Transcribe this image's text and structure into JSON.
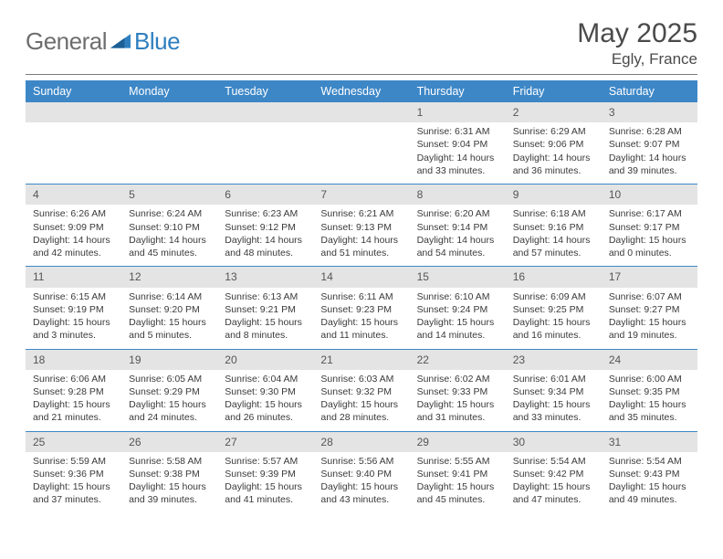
{
  "logo": {
    "part1": "General",
    "part2": "Blue"
  },
  "title": "May 2025",
  "location": "Egly, France",
  "weekdays": [
    "Sunday",
    "Monday",
    "Tuesday",
    "Wednesday",
    "Thursday",
    "Friday",
    "Saturday"
  ],
  "colors": {
    "header_bg": "#3d87c7",
    "header_text": "#ffffff",
    "daynum_bg": "#e4e4e4",
    "row_border": "#3d87c7",
    "body_text": "#3a3a3a",
    "title_text": "#4a4a4a",
    "logo_gray": "#6e6e6e",
    "logo_blue": "#2f7fbf"
  },
  "fonts": {
    "title_size_pt": 30,
    "location_size_pt": 17,
    "weekday_size_pt": 12.5,
    "daynum_size_pt": 12,
    "cell_size_pt": 10.5
  },
  "weeks": [
    [
      null,
      null,
      null,
      null,
      {
        "n": "1",
        "sr": "6:31 AM",
        "ss": "9:04 PM",
        "dl": "14 hours and 33 minutes."
      },
      {
        "n": "2",
        "sr": "6:29 AM",
        "ss": "9:06 PM",
        "dl": "14 hours and 36 minutes."
      },
      {
        "n": "3",
        "sr": "6:28 AM",
        "ss": "9:07 PM",
        "dl": "14 hours and 39 minutes."
      }
    ],
    [
      {
        "n": "4",
        "sr": "6:26 AM",
        "ss": "9:09 PM",
        "dl": "14 hours and 42 minutes."
      },
      {
        "n": "5",
        "sr": "6:24 AM",
        "ss": "9:10 PM",
        "dl": "14 hours and 45 minutes."
      },
      {
        "n": "6",
        "sr": "6:23 AM",
        "ss": "9:12 PM",
        "dl": "14 hours and 48 minutes."
      },
      {
        "n": "7",
        "sr": "6:21 AM",
        "ss": "9:13 PM",
        "dl": "14 hours and 51 minutes."
      },
      {
        "n": "8",
        "sr": "6:20 AM",
        "ss": "9:14 PM",
        "dl": "14 hours and 54 minutes."
      },
      {
        "n": "9",
        "sr": "6:18 AM",
        "ss": "9:16 PM",
        "dl": "14 hours and 57 minutes."
      },
      {
        "n": "10",
        "sr": "6:17 AM",
        "ss": "9:17 PM",
        "dl": "15 hours and 0 minutes."
      }
    ],
    [
      {
        "n": "11",
        "sr": "6:15 AM",
        "ss": "9:19 PM",
        "dl": "15 hours and 3 minutes."
      },
      {
        "n": "12",
        "sr": "6:14 AM",
        "ss": "9:20 PM",
        "dl": "15 hours and 5 minutes."
      },
      {
        "n": "13",
        "sr": "6:13 AM",
        "ss": "9:21 PM",
        "dl": "15 hours and 8 minutes."
      },
      {
        "n": "14",
        "sr": "6:11 AM",
        "ss": "9:23 PM",
        "dl": "15 hours and 11 minutes."
      },
      {
        "n": "15",
        "sr": "6:10 AM",
        "ss": "9:24 PM",
        "dl": "15 hours and 14 minutes."
      },
      {
        "n": "16",
        "sr": "6:09 AM",
        "ss": "9:25 PM",
        "dl": "15 hours and 16 minutes."
      },
      {
        "n": "17",
        "sr": "6:07 AM",
        "ss": "9:27 PM",
        "dl": "15 hours and 19 minutes."
      }
    ],
    [
      {
        "n": "18",
        "sr": "6:06 AM",
        "ss": "9:28 PM",
        "dl": "15 hours and 21 minutes."
      },
      {
        "n": "19",
        "sr": "6:05 AM",
        "ss": "9:29 PM",
        "dl": "15 hours and 24 minutes."
      },
      {
        "n": "20",
        "sr": "6:04 AM",
        "ss": "9:30 PM",
        "dl": "15 hours and 26 minutes."
      },
      {
        "n": "21",
        "sr": "6:03 AM",
        "ss": "9:32 PM",
        "dl": "15 hours and 28 minutes."
      },
      {
        "n": "22",
        "sr": "6:02 AM",
        "ss": "9:33 PM",
        "dl": "15 hours and 31 minutes."
      },
      {
        "n": "23",
        "sr": "6:01 AM",
        "ss": "9:34 PM",
        "dl": "15 hours and 33 minutes."
      },
      {
        "n": "24",
        "sr": "6:00 AM",
        "ss": "9:35 PM",
        "dl": "15 hours and 35 minutes."
      }
    ],
    [
      {
        "n": "25",
        "sr": "5:59 AM",
        "ss": "9:36 PM",
        "dl": "15 hours and 37 minutes."
      },
      {
        "n": "26",
        "sr": "5:58 AM",
        "ss": "9:38 PM",
        "dl": "15 hours and 39 minutes."
      },
      {
        "n": "27",
        "sr": "5:57 AM",
        "ss": "9:39 PM",
        "dl": "15 hours and 41 minutes."
      },
      {
        "n": "28",
        "sr": "5:56 AM",
        "ss": "9:40 PM",
        "dl": "15 hours and 43 minutes."
      },
      {
        "n": "29",
        "sr": "5:55 AM",
        "ss": "9:41 PM",
        "dl": "15 hours and 45 minutes."
      },
      {
        "n": "30",
        "sr": "5:54 AM",
        "ss": "9:42 PM",
        "dl": "15 hours and 47 minutes."
      },
      {
        "n": "31",
        "sr": "5:54 AM",
        "ss": "9:43 PM",
        "dl": "15 hours and 49 minutes."
      }
    ]
  ],
  "labels": {
    "sunrise": "Sunrise:",
    "sunset": "Sunset:",
    "daylight": "Daylight:"
  }
}
